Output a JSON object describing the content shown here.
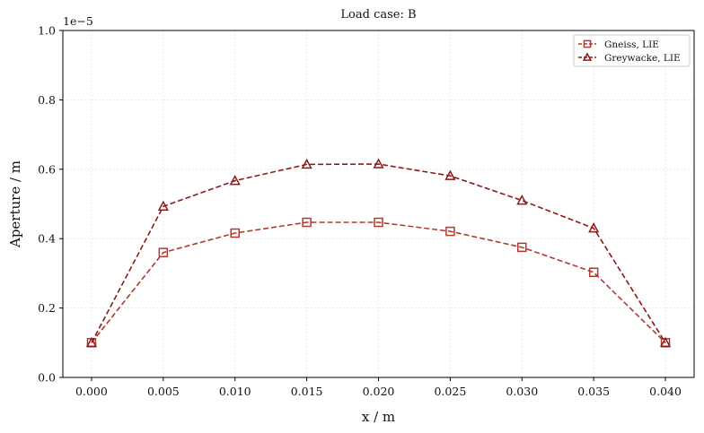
{
  "chart_data": {
    "type": "line",
    "title": "Load case: B",
    "xlabel": "x / m",
    "ylabel": "Aperture / m",
    "y_offset_label": "1e−5",
    "x": [
      0.0,
      0.005,
      0.01,
      0.015,
      0.02,
      0.025,
      0.03,
      0.035,
      0.04
    ],
    "xlim": [
      -0.002,
      0.042
    ],
    "ylim": [
      0,
      1.0
    ],
    "xticks": [
      0.0,
      0.005,
      0.01,
      0.015,
      0.02,
      0.025,
      0.03,
      0.035,
      0.04
    ],
    "xtick_labels": [
      "0.000",
      "0.005",
      "0.010",
      "0.015",
      "0.020",
      "0.025",
      "0.030",
      "0.035",
      "0.040"
    ],
    "yticks": [
      0.0,
      0.2,
      0.4,
      0.6,
      0.8,
      1.0
    ],
    "ytick_labels": [
      "0.0",
      "0.2",
      "0.4",
      "0.6",
      "0.8",
      "1.0"
    ],
    "grid": true,
    "legend_position": "top-right",
    "series": [
      {
        "name": "Gneiss, LIE",
        "marker": "square",
        "linestyle": "dashed",
        "color": "#b03a2e",
        "values": [
          0.1,
          0.36,
          0.416,
          0.447,
          0.447,
          0.421,
          0.375,
          0.303,
          0.1
        ]
      },
      {
        "name": "Greywacke, LIE",
        "marker": "triangle",
        "linestyle": "dashed",
        "color": "#8b1a1a",
        "values": [
          0.1,
          0.493,
          0.567,
          0.614,
          0.615,
          0.581,
          0.51,
          0.43,
          0.1
        ]
      }
    ]
  }
}
